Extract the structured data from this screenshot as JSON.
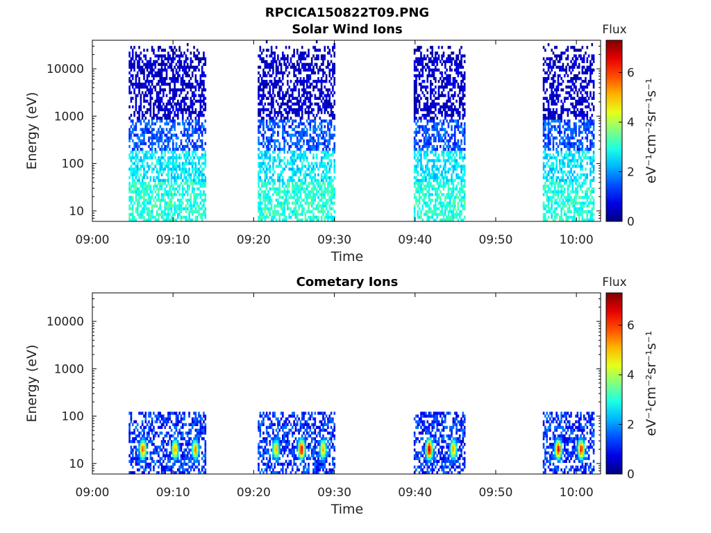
{
  "figure": {
    "title": "RPCICA150822T09.PNG"
  },
  "chart_data": [
    {
      "type": "heatmap",
      "title": "Solar Wind Ions",
      "xlabel": "Time",
      "ylabel": "Energy (eV)",
      "x_ticks": [
        "09:00",
        "09:10",
        "09:20",
        "09:30",
        "09:40",
        "09:50",
        "10:00"
      ],
      "x_range_minutes": [
        0,
        63
      ],
      "y_scale": "log",
      "y_ticks": [
        10,
        100,
        1000,
        10000
      ],
      "y_tick_labels": [
        "10",
        "100",
        "1000",
        "10000"
      ],
      "y_range": [
        6,
        40000
      ],
      "colorbar": {
        "label": "Flux",
        "unit": "eV⁻¹cm⁻²sr⁻¹s⁻¹",
        "ticks": [
          0,
          2,
          4,
          6
        ],
        "range": [
          0,
          7.3
        ],
        "colormap": "jet"
      },
      "bursts": [
        {
          "start": "09:04:30",
          "end": "09:14:00"
        },
        {
          "start": "09:20:30",
          "end": "09:30:00"
        },
        {
          "start": "09:39:50",
          "end": "09:46:10"
        },
        {
          "start": "09:55:50",
          "end": "10:02:10"
        }
      ],
      "flux_profile_by_energy": [
        {
          "energy_range_eV": [
            6,
            40
          ],
          "flux": 3
        },
        {
          "energy_range_eV": [
            40,
            200
          ],
          "flux": 2.6
        },
        {
          "energy_range_eV": [
            200,
            800
          ],
          "flux": 1.5
        },
        {
          "energy_range_eV": [
            800,
            20000
          ],
          "flux": 0.5
        },
        {
          "energy_range_eV": [
            20000,
            40000
          ],
          "flux": 0.4
        }
      ]
    },
    {
      "type": "heatmap",
      "title": "Cometary Ions",
      "xlabel": "Time",
      "ylabel": "Energy (eV)",
      "x_ticks": [
        "09:00",
        "09:10",
        "09:20",
        "09:30",
        "09:40",
        "09:50",
        "10:00"
      ],
      "x_range_minutes": [
        0,
        63
      ],
      "y_scale": "log",
      "y_ticks": [
        10,
        100,
        1000,
        10000
      ],
      "y_tick_labels": [
        "10",
        "100",
        "1000",
        "10000"
      ],
      "y_range": [
        6,
        40000
      ],
      "colorbar": {
        "label": "Flux",
        "unit": "eV⁻¹cm⁻²sr⁻¹s⁻¹",
        "ticks": [
          0,
          2,
          4,
          6
        ],
        "range": [
          0,
          7.3
        ],
        "colormap": "jet"
      },
      "bursts": [
        {
          "start": "09:04:30",
          "end": "09:14:00"
        },
        {
          "start": "09:20:30",
          "end": "09:30:00"
        },
        {
          "start": "09:39:50",
          "end": "09:46:10"
        },
        {
          "start": "09:55:50",
          "end": "10:02:10"
        }
      ],
      "energy_range_eV": [
        6,
        130
      ],
      "peak_energy_eV": 20,
      "peaks": [
        {
          "time": "09:06:10",
          "flux": 5.4
        },
        {
          "time": "09:10:10",
          "flux": 5.0
        },
        {
          "time": "09:12:40",
          "flux": 5.2
        },
        {
          "time": "09:22:40",
          "flux": 4.6
        },
        {
          "time": "09:25:50",
          "flux": 6.2
        },
        {
          "time": "09:28:30",
          "flux": 4.9
        },
        {
          "time": "09:41:40",
          "flux": 6.6
        },
        {
          "time": "09:44:40",
          "flux": 5.0
        },
        {
          "time": "09:57:40",
          "flux": 6.1
        },
        {
          "time": "10:00:30",
          "flux": 5.8
        }
      ]
    }
  ]
}
